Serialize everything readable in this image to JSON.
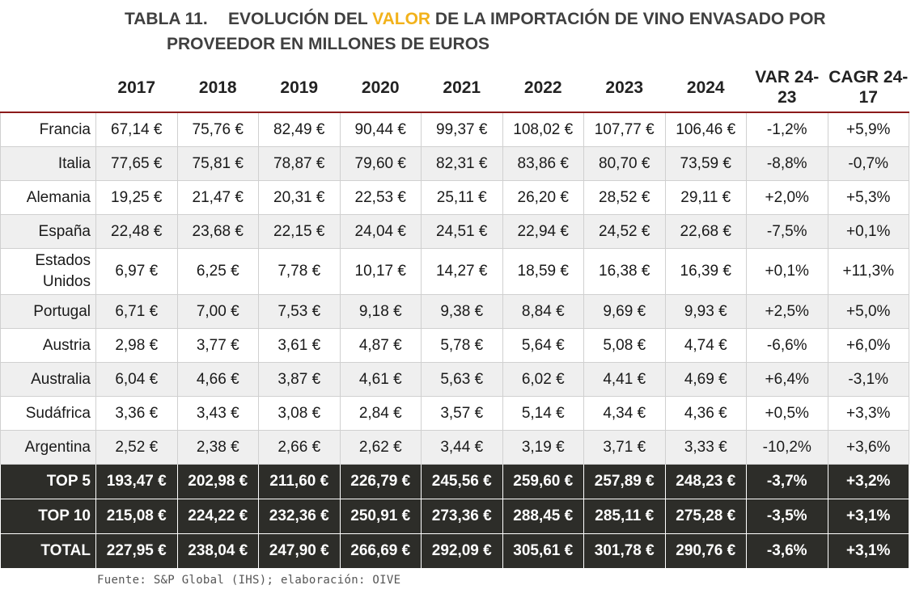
{
  "title": {
    "number": "TABLA 11.",
    "part1": "EVOLUCIÓN DEL ",
    "highlight": "VALOR",
    "part2": " DE LA IMPORTACIÓN DE VINO ENVASADO POR",
    "line2": "PROVEEDOR EN MILLONES DE EUROS"
  },
  "headers": [
    "2017",
    "2018",
    "2019",
    "2020",
    "2021",
    "2022",
    "2023",
    "2024",
    "VAR 24-23",
    "CAGR 24-17"
  ],
  "rows": [
    {
      "name": "Francia",
      "cells": [
        "67,14 €",
        "75,76 €",
        "82,49 €",
        "90,44 €",
        "99,37 €",
        "108,02 €",
        "107,77 €",
        "106,46 €",
        "-1,2%",
        "+5,9%"
      ]
    },
    {
      "name": "Italia",
      "cells": [
        "77,65 €",
        "75,81 €",
        "78,87 €",
        "79,60 €",
        "82,31 €",
        "83,86 €",
        "80,70 €",
        "73,59 €",
        "-8,8%",
        "-0,7%"
      ]
    },
    {
      "name": "Alemania",
      "cells": [
        "19,25 €",
        "21,47 €",
        "20,31 €",
        "22,53 €",
        "25,11 €",
        "26,20 €",
        "28,52 €",
        "29,11 €",
        "+2,0%",
        "+5,3%"
      ]
    },
    {
      "name": "España",
      "cells": [
        "22,48 €",
        "23,68 €",
        "22,15 €",
        "24,04 €",
        "24,51 €",
        "22,94 €",
        "24,52 €",
        "22,68 €",
        "-7,5%",
        "+0,1%"
      ]
    },
    {
      "name": "Estados Unidos",
      "cells": [
        "6,97 €",
        "6,25 €",
        "7,78 €",
        "10,17 €",
        "14,27 €",
        "18,59 €",
        "16,38 €",
        "16,39 €",
        "+0,1%",
        "+11,3%"
      ]
    },
    {
      "name": "Portugal",
      "cells": [
        "6,71 €",
        "7,00 €",
        "7,53 €",
        "9,18 €",
        "9,38 €",
        "8,84 €",
        "9,69 €",
        "9,93 €",
        "+2,5%",
        "+5,0%"
      ]
    },
    {
      "name": "Austria",
      "cells": [
        "2,98 €",
        "3,77 €",
        "3,61 €",
        "4,87 €",
        "5,78 €",
        "5,64 €",
        "5,08 €",
        "4,74 €",
        "-6,6%",
        "+6,0%"
      ]
    },
    {
      "name": "Australia",
      "cells": [
        "6,04 €",
        "4,66 €",
        "3,87 €",
        "4,61 €",
        "5,63 €",
        "6,02 €",
        "4,41 €",
        "4,69 €",
        "+6,4%",
        "-3,1%"
      ]
    },
    {
      "name": "Sudáfrica",
      "cells": [
        "3,36 €",
        "3,43 €",
        "3,08 €",
        "2,84 €",
        "3,57 €",
        "5,14 €",
        "4,34 €",
        "4,36 €",
        "+0,5%",
        "+3,3%"
      ]
    },
    {
      "name": "Argentina",
      "cells": [
        "2,52 €",
        "2,38 €",
        "2,66 €",
        "2,62 €",
        "3,44 €",
        "3,19 €",
        "3,71 €",
        "3,33 €",
        "-10,2%",
        "+3,6%"
      ]
    }
  ],
  "totals": [
    {
      "name": "TOP 5",
      "cells": [
        "193,47 €",
        "202,98 €",
        "211,60 €",
        "226,79 €",
        "245,56 €",
        "259,60 €",
        "257,89 €",
        "248,23 €",
        "-3,7%",
        "+3,2%"
      ]
    },
    {
      "name": "TOP 10",
      "cells": [
        "215,08 €",
        "224,22 €",
        "232,36 €",
        "250,91 €",
        "273,36 €",
        "288,45 €",
        "285,11 €",
        "275,28 €",
        "-3,5%",
        "+3,1%"
      ]
    },
    {
      "name": "TOTAL",
      "cells": [
        "227,95 €",
        "238,04 €",
        "247,90 €",
        "266,69 €",
        "292,09 €",
        "305,61 €",
        "301,78 €",
        "290,76 €",
        "-3,6%",
        "+3,1%"
      ]
    }
  ],
  "source": "Fuente: S&P Global (IHS); elaboración: OIVE",
  "colors": {
    "highlight": "#f2b21b",
    "header_rule": "#8b1a1a",
    "total_bg": "#2d2d29",
    "stripe": "#efefef"
  }
}
